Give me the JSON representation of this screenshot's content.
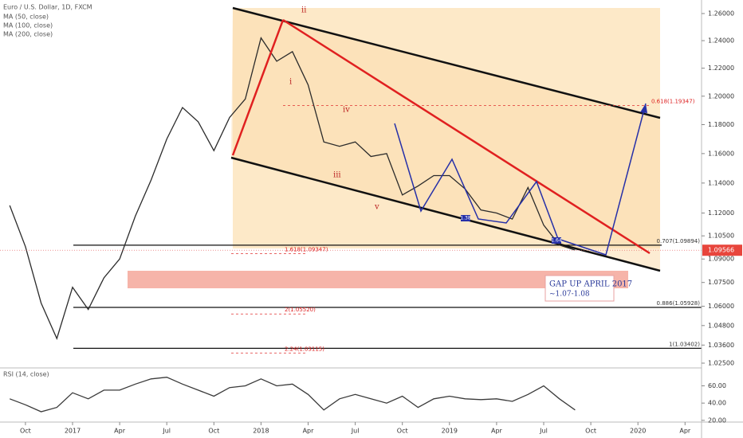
{
  "chart_data": [
    {
      "type": "line",
      "title": "Euro / U.S. Dollar, 1D, FXCM",
      "indicators": [
        "MA (50, close)",
        "MA (100, close)",
        "MA (200, close)"
      ],
      "log_scale": true,
      "grid": false,
      "color": "#2b2b2b",
      "x": [
        "2016-09",
        "2016-10",
        "2016-11",
        "2016-12",
        "2017-01",
        "2017-02",
        "2017-03",
        "2017-04",
        "2017-05",
        "2017-06",
        "2017-07",
        "2017-08",
        "2017-09",
        "2017-10",
        "2017-11",
        "2017-12",
        "2018-01",
        "2018-02",
        "2018-03",
        "2018-04",
        "2018-05",
        "2018-06",
        "2018-07",
        "2018-08",
        "2018-09",
        "2018-10",
        "2018-11",
        "2018-12",
        "2019-01",
        "2019-02",
        "2019-03",
        "2019-04",
        "2019-05",
        "2019-06",
        "2019-07",
        "2019-08",
        "2019-09"
      ],
      "values": [
        1.125,
        1.098,
        1.062,
        1.04,
        1.072,
        1.058,
        1.078,
        1.09,
        1.118,
        1.142,
        1.17,
        1.192,
        1.182,
        1.162,
        1.185,
        1.198,
        1.242,
        1.225,
        1.232,
        1.208,
        1.168,
        1.165,
        1.168,
        1.158,
        1.16,
        1.132,
        1.138,
        1.145,
        1.145,
        1.136,
        1.122,
        1.12,
        1.116,
        1.137,
        1.112,
        1.099,
        1.0957
      ],
      "ylim": [
        1.025,
        1.26
      ],
      "yticks": [
        {
          "value": 1.26,
          "label": "1.26000"
        },
        {
          "value": 1.24,
          "label": "1.24000"
        },
        {
          "value": 1.22,
          "label": "1.22000"
        },
        {
          "value": 1.2,
          "label": "1.20000"
        },
        {
          "value": 1.18,
          "label": "1.18000"
        },
        {
          "value": 1.16,
          "label": "1.16000"
        },
        {
          "value": 1.14,
          "label": "1.14000"
        },
        {
          "value": 1.12,
          "label": "1.12000"
        },
        {
          "value": 1.105,
          "label": "1.10500"
        },
        {
          "value": 1.09,
          "label": "1.09000"
        },
        {
          "value": 1.075,
          "label": "1.07500"
        },
        {
          "value": 1.06,
          "label": "1.06000"
        },
        {
          "value": 1.048,
          "label": "1.04800"
        },
        {
          "value": 1.036,
          "label": "1.03600"
        },
        {
          "value": 1.025,
          "label": "1.02500"
        }
      ],
      "xticks": [
        {
          "value": "2016-10",
          "label": "Oct"
        },
        {
          "value": "2017-01",
          "label": "2017"
        },
        {
          "value": "2017-04",
          "label": "Apr"
        },
        {
          "value": "2017-07",
          "label": "Jul"
        },
        {
          "value": "2017-10",
          "label": "Oct"
        },
        {
          "value": "2018-01",
          "label": "2018"
        },
        {
          "value": "2018-04",
          "label": "Apr"
        },
        {
          "value": "2018-07",
          "label": "Jul"
        },
        {
          "value": "2018-10",
          "label": "Oct"
        },
        {
          "value": "2019-01",
          "label": "2019"
        },
        {
          "value": "2019-04",
          "label": "Apr"
        },
        {
          "value": "2019-07",
          "label": "Jul"
        },
        {
          "value": "2019-10",
          "label": "Oct"
        },
        {
          "value": "2020-01",
          "label": "2020"
        },
        {
          "value": "2020-04",
          "label": "Apr"
        }
      ],
      "last_price": 1.09566,
      "fib_levels": [
        {
          "label": "0.618(1.19347)",
          "value": 1.19347
        },
        {
          "label": "0.707(1.09894)",
          "value": 1.09894
        },
        {
          "label": "1.618(1.09347)",
          "value": 1.09347
        },
        {
          "label": "0.886(1.05928)",
          "value": 1.05928
        },
        {
          "label": "2(1.05520)",
          "value": 1.0552
        },
        {
          "label": "1(1.03402)",
          "value": 1.03402
        },
        {
          "label": "2.24(1.03115)",
          "value": 1.03115
        }
      ],
      "wave_labels": [
        "ii",
        "i",
        "iii",
        "iv",
        "v"
      ],
      "box_text": [
        "GAP UP APRIL 2017",
        "~1.07-1.08"
      ],
      "tags": [
        "1.38",
        "1.64"
      ]
    },
    {
      "type": "line",
      "title": "RSI (14, close)",
      "color": "#3a3a3a",
      "x": [
        "2016-09",
        "2016-10",
        "2016-11",
        "2016-12",
        "2017-01",
        "2017-02",
        "2017-03",
        "2017-04",
        "2017-05",
        "2017-06",
        "2017-07",
        "2017-08",
        "2017-09",
        "2017-10",
        "2017-11",
        "2017-12",
        "2018-01",
        "2018-02",
        "2018-03",
        "2018-04",
        "2018-05",
        "2018-06",
        "2018-07",
        "2018-08",
        "2018-09",
        "2018-10",
        "2018-11",
        "2018-12",
        "2019-01",
        "2019-02",
        "2019-03",
        "2019-04",
        "2019-05",
        "2019-06",
        "2019-07",
        "2019-08",
        "2019-09"
      ],
      "values": [
        45,
        38,
        30,
        35,
        52,
        45,
        55,
        55,
        62,
        68,
        70,
        62,
        55,
        48,
        58,
        60,
        68,
        60,
        62,
        50,
        32,
        45,
        50,
        45,
        40,
        48,
        35,
        45,
        48,
        45,
        44,
        45,
        42,
        50,
        60,
        45,
        32
      ],
      "ylim": [
        18,
        78
      ],
      "yticks": [
        {
          "value": 60,
          "label": "60.00"
        },
        {
          "value": 40,
          "label": "40.00"
        },
        {
          "value": 20,
          "label": "20.00"
        }
      ]
    }
  ]
}
